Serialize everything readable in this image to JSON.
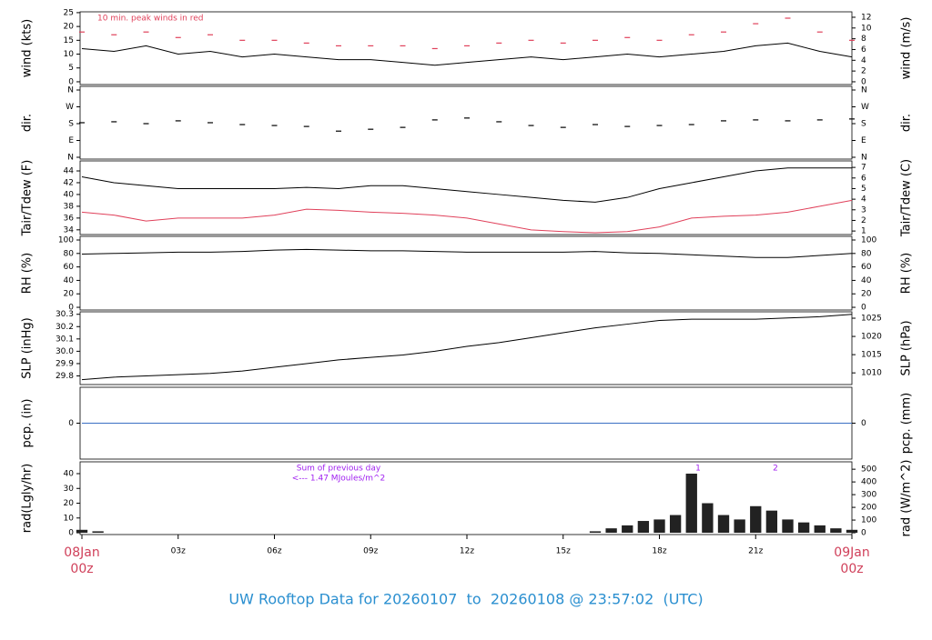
{
  "title": "UW Rooftop Data for 20260107  to  20260108 @ 23:57:02  (UTC)",
  "chart_data": [
    {
      "type": "line",
      "ylabel": "wind (kts)",
      "y2label": "wind (m/s)",
      "annotation": "10 min. peak winds in red",
      "x": [
        0,
        1,
        2,
        3,
        4,
        5,
        6,
        7,
        8,
        9,
        10,
        11,
        12,
        13,
        14,
        15,
        16,
        17,
        18,
        19,
        20,
        21,
        22,
        23,
        24
      ],
      "xlim": [
        0,
        24
      ],
      "series": [
        {
          "name": "wind",
          "color": "#000000",
          "values": [
            12,
            11,
            13,
            10,
            11,
            9,
            10,
            9,
            8,
            8,
            7,
            6,
            7,
            8,
            9,
            8,
            9,
            10,
            9,
            10,
            11,
            13,
            14,
            11,
            9
          ]
        },
        {
          "name": "10 min. peak winds",
          "color": "#e0405a",
          "marker": "dash",
          "values": [
            18,
            17,
            18,
            16,
            17,
            15,
            15,
            14,
            13,
            13,
            13,
            12,
            13,
            14,
            15,
            14,
            15,
            16,
            15,
            17,
            18,
            21,
            23,
            18,
            15
          ]
        }
      ],
      "ylim": [
        -1,
        25.3
      ],
      "yticks": [
        0,
        5,
        10,
        15,
        20,
        25
      ],
      "y2lim": [
        -0.514,
        13.01
      ],
      "y2ticks": [
        0,
        2,
        4,
        6,
        8,
        10,
        12
      ]
    },
    {
      "type": "line",
      "ylabel": "dir.",
      "y2label": "dir.",
      "x": [
        0,
        1,
        2,
        3,
        4,
        5,
        6,
        7,
        8,
        9,
        10,
        11,
        12,
        13,
        14,
        15,
        16,
        17,
        18,
        19,
        20,
        21,
        22,
        23,
        24
      ],
      "xlim": [
        0,
        24
      ],
      "series": [
        {
          "name": "dir",
          "color": "#000000",
          "marker": "dash",
          "values": [
            185,
            190,
            180,
            195,
            185,
            175,
            170,
            165,
            140,
            150,
            160,
            200,
            210,
            190,
            170,
            160,
            175,
            165,
            170,
            175,
            195,
            200,
            195,
            200,
            205
          ]
        }
      ],
      "ylim": [
        -9.7,
        379.5
      ],
      "yticks": [
        {
          "value": 0,
          "label": "N"
        },
        {
          "value": 90,
          "label": "E"
        },
        {
          "value": 180,
          "label": "S"
        },
        {
          "value": 270,
          "label": "W"
        },
        {
          "value": 360,
          "label": "N"
        }
      ],
      "y2lim": [
        -9.7,
        379.5
      ],
      "y2ticks": [
        {
          "value": 0,
          "label": "N"
        },
        {
          "value": 90,
          "label": "E"
        },
        {
          "value": 180,
          "label": "S"
        },
        {
          "value": 270,
          "label": "W"
        },
        {
          "value": 360,
          "label": "N"
        }
      ]
    },
    {
      "type": "line",
      "ylabel": "Tair/Tdew (F)",
      "y2label": "Tair/Tdew (C)",
      "x": [
        0,
        1,
        2,
        3,
        4,
        5,
        6,
        7,
        8,
        9,
        10,
        11,
        12,
        13,
        14,
        15,
        16,
        17,
        18,
        19,
        20,
        21,
        22,
        23,
        24
      ],
      "xlim": [
        0,
        24
      ],
      "series": [
        {
          "name": "Tair",
          "color": "#000000",
          "values": [
            43,
            42,
            41.5,
            41,
            41,
            41,
            41,
            41.2,
            41,
            41.5,
            41.5,
            41,
            40.5,
            40,
            39.5,
            39,
            38.7,
            39.5,
            41,
            42,
            43,
            44,
            44.5,
            44.5,
            44.5
          ]
        },
        {
          "name": "Tdew",
          "color": "#e0405a",
          "values": [
            37,
            36.5,
            35.5,
            36,
            36,
            36,
            36.5,
            37.5,
            37.3,
            37,
            36.8,
            36.5,
            36,
            35,
            34,
            33.7,
            33.5,
            33.7,
            34.5,
            36,
            36.3,
            36.5,
            37,
            38,
            39
          ]
        }
      ],
      "ylim": [
        33.2,
        45.7
      ],
      "yticks": [
        34,
        36,
        38,
        40,
        42,
        44
      ],
      "y2lim": [
        0.667,
        7.611
      ],
      "y2ticks": [
        1,
        2,
        3,
        4,
        5,
        6,
        7
      ]
    },
    {
      "type": "line",
      "ylabel": "RH (%)",
      "y2label": "RH (%)",
      "x": [
        0,
        1,
        2,
        3,
        4,
        5,
        6,
        7,
        8,
        9,
        10,
        11,
        12,
        13,
        14,
        15,
        16,
        17,
        18,
        19,
        20,
        21,
        22,
        23,
        24
      ],
      "xlim": [
        0,
        24
      ],
      "series": [
        {
          "name": "RH",
          "color": "#000000",
          "values": [
            79,
            80,
            81,
            82,
            82,
            83,
            85,
            86,
            85,
            84,
            84,
            83,
            82,
            82,
            82,
            82,
            83,
            81,
            80,
            78,
            76,
            74,
            74,
            77,
            80
          ]
        }
      ],
      "ylim": [
        -4,
        105.4
      ],
      "yticks": [
        0,
        20,
        40,
        60,
        80,
        100
      ],
      "y2lim": [
        -4,
        105.4
      ],
      "y2ticks": [
        0,
        20,
        40,
        60,
        80,
        100
      ]
    },
    {
      "type": "line",
      "ylabel": "SLP (inHg)",
      "y2label": "SLP (hPa)",
      "x": [
        0,
        1,
        2,
        3,
        4,
        5,
        6,
        7,
        8,
        9,
        10,
        11,
        12,
        13,
        14,
        15,
        16,
        17,
        18,
        19,
        20,
        21,
        22,
        23,
        24
      ],
      "xlim": [
        0,
        24
      ],
      "series": [
        {
          "name": "SLP",
          "color": "#000000",
          "values": [
            29.77,
            29.79,
            29.8,
            29.81,
            29.82,
            29.84,
            29.87,
            29.9,
            29.93,
            29.95,
            29.97,
            30,
            30.04,
            30.07,
            30.11,
            30.15,
            30.19,
            30.22,
            30.25,
            30.26,
            30.26,
            30.26,
            30.27,
            30.28,
            30.3
          ]
        }
      ],
      "ylim": [
        29.73,
        30.32
      ],
      "yticks": [
        29.8,
        29.9,
        {
          "value": 30,
          "label": "30.0"
        },
        30.1,
        30.2,
        30.3
      ],
      "y2lim": [
        1006.8,
        1026.75
      ],
      "y2ticks": [
        1010,
        1015,
        1020,
        1025
      ]
    },
    {
      "type": "line",
      "ylabel": "pcp. (in)",
      "y2label": "pcp. (mm)",
      "x": [
        0,
        24
      ],
      "xlim": [
        0,
        24
      ],
      "series": [
        {
          "name": "pcp",
          "color": "#3a6fc4",
          "values": [
            0,
            0
          ]
        }
      ],
      "ylim": [
        -0.3,
        0.3
      ],
      "yticks": [
        0
      ],
      "y2lim": [
        -7.62,
        7.62
      ],
      "y2ticks": [
        0
      ]
    },
    {
      "type": "bar",
      "ylabel": "rad(Lgly/hr)",
      "y2label": "rad (W/m^2)",
      "annotations": [
        "Sum of previous day",
        "<--- 1.47 MJoules/m^2",
        "1",
        "2"
      ],
      "x": [
        0,
        0.5,
        1,
        1.5,
        2,
        2.5,
        3,
        3.5,
        4,
        4.5,
        5,
        5.5,
        6,
        6.5,
        7,
        7.5,
        8,
        8.5,
        9,
        9.5,
        10,
        10.5,
        11,
        11.5,
        12,
        12.5,
        13,
        13.5,
        14,
        14.5,
        15,
        15.5,
        16,
        16.5,
        17,
        17.5,
        18,
        18.5,
        19,
        19.5,
        20,
        20.5,
        21,
        21.5,
        22,
        22.5,
        23,
        23.5,
        24
      ],
      "xlim": [
        0,
        24
      ],
      "series": [
        {
          "name": "rad",
          "color": "#222222",
          "values": [
            2,
            1,
            0,
            0,
            0,
            0,
            0,
            0,
            0,
            0,
            0,
            0,
            0,
            0,
            0,
            0,
            0,
            0,
            0,
            0,
            0,
            0,
            0,
            0,
            0,
            0,
            0,
            0,
            0,
            0,
            0,
            0,
            1,
            3,
            5,
            8,
            9,
            12,
            40,
            20,
            12,
            9,
            18,
            15,
            9,
            7,
            5,
            3,
            2
          ]
        }
      ],
      "ylim": [
        -1.2,
        48
      ],
      "yticks": [
        0,
        10,
        20,
        30,
        40
      ],
      "y2lim": [
        -13.96,
        558.2
      ],
      "y2ticks": [
        0,
        100,
        200,
        300,
        400,
        500
      ],
      "xticks": [
        {
          "value": 0,
          "label": "08Jan 00z"
        },
        {
          "value": 3,
          "label": "03z"
        },
        {
          "value": 6,
          "label": "06z"
        },
        {
          "value": 9,
          "label": "09z"
        },
        {
          "value": 12,
          "label": "12z"
        },
        {
          "value": 15,
          "label": "15z"
        },
        {
          "value": 18,
          "label": "18z"
        },
        {
          "value": 21,
          "label": "21z"
        },
        {
          "value": 24,
          "label": "09Jan 00z"
        }
      ]
    }
  ]
}
